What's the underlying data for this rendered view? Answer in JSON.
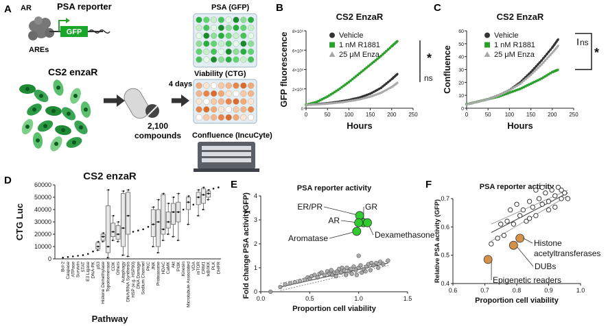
{
  "panel_letters": [
    "A",
    "B",
    "C",
    "D",
    "E",
    "F"
  ],
  "panel_a": {
    "ar_label": "AR",
    "ares_label": "AREs",
    "reporter_title": "PSA reporter",
    "gfp_label": "GFP",
    "cell_line": "CS2 enzaR",
    "compounds_count": "2,100",
    "compounds_label": "compounds",
    "duration": "4 days",
    "psa_readout": "PSA (GFP)",
    "viability_readout": "Viability (CTG)",
    "confluence_readout": "Confluence (IncuCyte)"
  },
  "colors": {
    "vehicle": "#333333",
    "r1881": "#2ca02c",
    "enza": "#a8a8a8",
    "bright_green": "#2ecc2e",
    "orange": "#d4914a",
    "gray_point": "#9a9a9a"
  },
  "chart_data": [
    {
      "id": "B",
      "type": "line",
      "title": "CS2 EnzaR",
      "xlabel": "Hours",
      "ylabel": "GFP fluorescence",
      "xlim": [
        0,
        250
      ],
      "ylim": [
        0,
        8000000
      ],
      "x_ticks": [
        "0",
        "50",
        "100",
        "150",
        "200",
        "250"
      ],
      "y_ticks": [
        "0",
        "2×10⁶",
        "4×10⁶",
        "6×10⁶",
        "8×10⁶"
      ],
      "legend": [
        "Vehicle",
        "1 nM R1881",
        "25 μM Enza"
      ],
      "series": [
        {
          "name": "Vehicle",
          "x": [
            0,
            25,
            50,
            75,
            100,
            125,
            150,
            175,
            200,
            215
          ],
          "values": [
            350000,
            420000,
            520000,
            660000,
            850000,
            1100000,
            1500000,
            2100000,
            3000000,
            3600000
          ]
        },
        {
          "name": "1 nM R1881",
          "x": [
            0,
            25,
            50,
            75,
            100,
            125,
            150,
            175,
            200,
            215
          ],
          "values": [
            350000,
            650000,
            1200000,
            1900000,
            2700000,
            3600000,
            4500000,
            5400000,
            6400000,
            7000000
          ]
        },
        {
          "name": "25 μM Enza",
          "x": [
            0,
            25,
            50,
            75,
            100,
            125,
            150,
            175,
            200,
            215
          ],
          "values": [
            350000,
            400000,
            480000,
            580000,
            730000,
            920000,
            1200000,
            1600000,
            2200000,
            2700000
          ]
        }
      ],
      "annotations": [
        "*",
        "ns"
      ]
    },
    {
      "id": "C",
      "type": "line",
      "title": "CS2 EnzaR",
      "xlabel": "Hours",
      "ylabel": "Confluence",
      "xlim": [
        0,
        250
      ],
      "ylim": [
        0,
        60
      ],
      "x_ticks": [
        "0",
        "50",
        "100",
        "150",
        "200",
        "250"
      ],
      "y_ticks": [
        "0",
        "10",
        "20",
        "30",
        "40",
        "50",
        "60"
      ],
      "legend": [
        "Vehicle",
        "1 nM R1881",
        "25 μM Enza"
      ],
      "series": [
        {
          "name": "Vehicle",
          "x": [
            0,
            25,
            50,
            75,
            100,
            125,
            150,
            175,
            200,
            215
          ],
          "values": [
            3,
            5,
            7,
            10,
            14,
            20,
            28,
            37,
            47,
            54
          ]
        },
        {
          "name": "1 nM R1881",
          "x": [
            0,
            25,
            50,
            75,
            100,
            125,
            150,
            175,
            200,
            215
          ],
          "values": [
            3,
            5,
            7,
            9,
            12,
            15,
            19,
            23,
            28,
            30
          ]
        },
        {
          "name": "25 μM Enza",
          "x": [
            0,
            25,
            50,
            75,
            100,
            125,
            150,
            175,
            200,
            215
          ],
          "values": [
            3,
            5,
            7,
            10,
            14,
            19,
            26,
            34,
            43,
            49
          ]
        }
      ],
      "annotations": [
        "ns",
        "*"
      ]
    },
    {
      "id": "D",
      "type": "box",
      "title": "CS2 enzaR",
      "xlabel": "Pathway",
      "ylabel": "CTG Luc",
      "ylim": [
        0,
        60000
      ],
      "y_ticks": [
        "0",
        "10000",
        "20000",
        "30000",
        "40000",
        "50000",
        "60000"
      ],
      "categories": [
        "Bcl-2",
        "Caspase",
        "ATPase",
        "Survivin",
        "STAT",
        "E3 Ligase",
        "DNA-PK",
        "p53",
        "Histone Demethylase",
        "Topoisomerase",
        "CDK",
        "Others",
        "Autophagy",
        "DNA/RNA Synthesis",
        "HSP (e.g. HSP90)",
        "DNA Damage",
        "Sodium Channel",
        "PKC",
        "JNK",
        "Proteasome",
        "HDAC",
        "CaMK",
        "Akt",
        "PI3K",
        "Kinesin",
        "Microtubule Associated",
        "VDA",
        "mTOR",
        "CRM1",
        "IκB/IKK",
        "PLK",
        "DHFR"
      ],
      "boxes": [
        {
          "low": 1000,
          "q1": 1000,
          "med": 1000,
          "q3": 1000,
          "high": 1000
        },
        {
          "low": 1500,
          "q1": 1500,
          "med": 1500,
          "q3": 1500,
          "high": 1500
        },
        {
          "low": 2000,
          "q1": 2000,
          "med": 2000,
          "q3": 2000,
          "high": 2000
        },
        {
          "low": 2500,
          "q1": 2500,
          "med": 2500,
          "q3": 2500,
          "high": 2500
        },
        {
          "low": 3000,
          "q1": 3000,
          "med": 3000,
          "q3": 3000,
          "high": 3000
        },
        {
          "low": 4000,
          "q1": 4000,
          "med": 4000,
          "q3": 4000,
          "high": 4000
        },
        {
          "low": 6000,
          "q1": 6000,
          "med": 6000,
          "q3": 6000,
          "high": 6000
        },
        {
          "low": 7000,
          "q1": 8000,
          "med": 10000,
          "q3": 13000,
          "high": 14000
        },
        {
          "low": 14000,
          "q1": 15000,
          "med": 18000,
          "q3": 20000,
          "high": 21000
        },
        {
          "low": 1000,
          "q1": 5000,
          "med": 10000,
          "q3": 43000,
          "high": 56000
        },
        {
          "low": 15000,
          "q1": 18000,
          "med": 22000,
          "q3": 29000,
          "high": 35000
        },
        {
          "low": 14000,
          "q1": 16000,
          "med": 20000,
          "q3": 27000,
          "high": 30000
        },
        {
          "low": 3000,
          "q1": 10000,
          "med": 25000,
          "q3": 53000,
          "high": 55000
        },
        {
          "low": 2000,
          "q1": 20000,
          "med": 35000,
          "q3": 54000,
          "high": 56000
        },
        {
          "low": 22000,
          "q1": 22000,
          "med": 22000,
          "q3": 22000,
          "high": 22000
        },
        {
          "low": 23000,
          "q1": 23000,
          "med": 23000,
          "q3": 23000,
          "high": 23000
        },
        {
          "low": 24000,
          "q1": 24000,
          "med": 24000,
          "q3": 24000,
          "high": 24000
        },
        {
          "low": 26000,
          "q1": 26000,
          "med": 26000,
          "q3": 26000,
          "high": 26000
        },
        {
          "low": 10000,
          "q1": 18000,
          "med": 28000,
          "q3": 40000,
          "high": 42000
        },
        {
          "low": 5000,
          "q1": 10000,
          "med": 30000,
          "q3": 40000,
          "high": 48000
        },
        {
          "low": 15000,
          "q1": 20000,
          "med": 24000,
          "q3": 52000,
          "high": 53000
        },
        {
          "low": 20000,
          "q1": 25000,
          "med": 30000,
          "q3": 38000,
          "high": 45000
        },
        {
          "low": 18000,
          "q1": 28000,
          "med": 38000,
          "q3": 45000,
          "high": 50000
        },
        {
          "low": 15000,
          "q1": 30000,
          "med": 38000,
          "q3": 46000,
          "high": 53000
        },
        {
          "low": 40000,
          "q1": 40000,
          "med": 40000,
          "q3": 40000,
          "high": 40000
        },
        {
          "low": 28000,
          "q1": 40000,
          "med": 46000,
          "q3": 50000,
          "high": 51000
        },
        {
          "low": 44000,
          "q1": 44000,
          "med": 44000,
          "q3": 44000,
          "high": 44000
        },
        {
          "low": 35000,
          "q1": 44000,
          "med": 50000,
          "q3": 54000,
          "high": 56000
        },
        {
          "low": 40000,
          "q1": 45000,
          "med": 52000,
          "q3": 57000,
          "high": 58000
        },
        {
          "low": 48000,
          "q1": 50000,
          "med": 53000,
          "q3": 55000,
          "high": 56000
        },
        {
          "low": 57000,
          "q1": 57000,
          "med": 57000,
          "q3": 57000,
          "high": 57000
        },
        {
          "low": 58000,
          "q1": 58000,
          "med": 58000,
          "q3": 58000,
          "high": 58000
        }
      ]
    },
    {
      "id": "E",
      "type": "scatter",
      "title": "PSA reporter activity",
      "xlabel": "Proportion cell viability",
      "ylabel": "Fold change PSA activity (GFP)",
      "ylabel_parts": [
        "Fold change",
        "PSA activity",
        "(GFP)"
      ],
      "xlim": [
        0,
        1.5
      ],
      "ylim": [
        0,
        4
      ],
      "x_ticks": [
        "0.0",
        "0.5",
        "1.0",
        "1.5"
      ],
      "y_ticks": [
        "0",
        "1",
        "2",
        "3",
        "4"
      ],
      "highlight_points": [
        {
          "label": "ER/PR",
          "x": 1.01,
          "y": 3.18
        },
        {
          "label": "GR",
          "x": 1.05,
          "y": 2.88
        },
        {
          "label": "AR",
          "x": 1.0,
          "y": 2.88
        },
        {
          "label": "Dexamethasone",
          "x": 1.09,
          "y": 2.88
        },
        {
          "label": "Aromatase",
          "x": 0.98,
          "y": 2.52
        }
      ],
      "points": [
        {
          "x": 0.1,
          "y": 0.0
        },
        {
          "x": 0.2,
          "y": 0.2
        },
        {
          "x": 0.25,
          "y": 0.3
        },
        {
          "x": 0.3,
          "y": 0.35
        },
        {
          "x": 0.35,
          "y": 0.4
        },
        {
          "x": 0.4,
          "y": 0.45
        },
        {
          "x": 0.45,
          "y": 0.5
        },
        {
          "x": 0.48,
          "y": 0.6
        },
        {
          "x": 0.5,
          "y": 0.55
        },
        {
          "x": 0.52,
          "y": 0.65
        },
        {
          "x": 0.55,
          "y": 0.7
        },
        {
          "x": 0.58,
          "y": 0.6
        },
        {
          "x": 0.6,
          "y": 0.75
        },
        {
          "x": 0.62,
          "y": 0.8
        },
        {
          "x": 0.65,
          "y": 0.7
        },
        {
          "x": 0.68,
          "y": 0.85
        },
        {
          "x": 0.7,
          "y": 0.75
        },
        {
          "x": 0.72,
          "y": 0.9
        },
        {
          "x": 0.75,
          "y": 0.8
        },
        {
          "x": 0.78,
          "y": 0.85
        },
        {
          "x": 0.8,
          "y": 0.95
        },
        {
          "x": 0.82,
          "y": 0.8
        },
        {
          "x": 0.85,
          "y": 0.9
        },
        {
          "x": 0.88,
          "y": 1.0
        },
        {
          "x": 0.9,
          "y": 0.85
        },
        {
          "x": 0.92,
          "y": 0.95
        },
        {
          "x": 0.95,
          "y": 1.05
        },
        {
          "x": 0.97,
          "y": 0.9
        },
        {
          "x": 1.0,
          "y": 1.0
        },
        {
          "x": 1.02,
          "y": 1.1
        },
        {
          "x": 1.05,
          "y": 0.95
        },
        {
          "x": 1.08,
          "y": 1.05
        },
        {
          "x": 1.1,
          "y": 1.15
        },
        {
          "x": 1.12,
          "y": 0.9
        },
        {
          "x": 1.15,
          "y": 1.1
        },
        {
          "x": 1.18,
          "y": 1.2
        },
        {
          "x": 1.2,
          "y": 1.0
        },
        {
          "x": 1.25,
          "y": 1.15
        },
        {
          "x": 1.3,
          "y": 1.3
        },
        {
          "x": 1.0,
          "y": 1.5
        },
        {
          "x": 0.98,
          "y": 0.7
        },
        {
          "x": 0.93,
          "y": 0.75
        },
        {
          "x": 0.87,
          "y": 0.7
        },
        {
          "x": 0.83,
          "y": 1.0
        },
        {
          "x": 0.77,
          "y": 0.65
        },
        {
          "x": 0.73,
          "y": 0.7
        },
        {
          "x": 1.03,
          "y": 0.8
        },
        {
          "x": 1.07,
          "y": 0.85
        },
        {
          "x": 1.13,
          "y": 1.2
        },
        {
          "x": 1.22,
          "y": 1.25
        }
      ],
      "fit": {
        "x": [
          0.2,
          1.3
        ],
        "y": [
          0.2,
          1.2
        ]
      }
    },
    {
      "id": "F",
      "type": "scatter",
      "title": "PSA reporter activity",
      "xlabel": "Proportion cell viability",
      "ylabel": "Relative PSA activity (GFP)",
      "xlim": [
        0.6,
        1.0
      ],
      "ylim": [
        0.4,
        0.7
      ],
      "x_ticks": [
        "0.6",
        "0.7",
        "0.8",
        "0.9",
        "1.0"
      ],
      "y_ticks": [
        "0.4",
        "0.5",
        "0.6",
        "0.7"
      ],
      "highlight_points": [
        {
          "label": "Histone acetyltransferases",
          "label_lines": [
            "Histone",
            "acetyltransferases"
          ],
          "x": 0.81,
          "y": 0.56
        },
        {
          "label": "DUBs",
          "x": 0.79,
          "y": 0.535
        },
        {
          "label": "Epigenetic readers",
          "x": 0.71,
          "y": 0.485
        }
      ],
      "points": [
        {
          "x": 0.72,
          "y": 0.54
        },
        {
          "x": 0.74,
          "y": 0.56
        },
        {
          "x": 0.75,
          "y": 0.61
        },
        {
          "x": 0.76,
          "y": 0.57
        },
        {
          "x": 0.77,
          "y": 0.62
        },
        {
          "x": 0.78,
          "y": 0.66
        },
        {
          "x": 0.79,
          "y": 0.61
        },
        {
          "x": 0.8,
          "y": 0.68
        },
        {
          "x": 0.81,
          "y": 0.64
        },
        {
          "x": 0.82,
          "y": 0.66
        },
        {
          "x": 0.83,
          "y": 0.62
        },
        {
          "x": 0.84,
          "y": 0.69
        },
        {
          "x": 0.85,
          "y": 0.67
        },
        {
          "x": 0.86,
          "y": 0.64
        },
        {
          "x": 0.87,
          "y": 0.7
        },
        {
          "x": 0.88,
          "y": 0.68
        },
        {
          "x": 0.89,
          "y": 0.72
        },
        {
          "x": 0.9,
          "y": 0.69
        },
        {
          "x": 0.91,
          "y": 0.73
        },
        {
          "x": 0.92,
          "y": 0.71
        },
        {
          "x": 0.93,
          "y": 0.74
        },
        {
          "x": 0.94,
          "y": 0.7
        },
        {
          "x": 0.95,
          "y": 0.72
        },
        {
          "x": 0.96,
          "y": 0.7
        },
        {
          "x": 0.86,
          "y": 0.73
        },
        {
          "x": 0.88,
          "y": 0.74
        },
        {
          "x": 0.92,
          "y": 0.67
        },
        {
          "x": 0.9,
          "y": 0.66
        },
        {
          "x": 0.94,
          "y": 0.73
        },
        {
          "x": 0.84,
          "y": 0.63
        }
      ],
      "fit": {
        "x": [
          0.72,
          0.96
        ],
        "y": [
          0.58,
          0.72
        ]
      }
    }
  ]
}
